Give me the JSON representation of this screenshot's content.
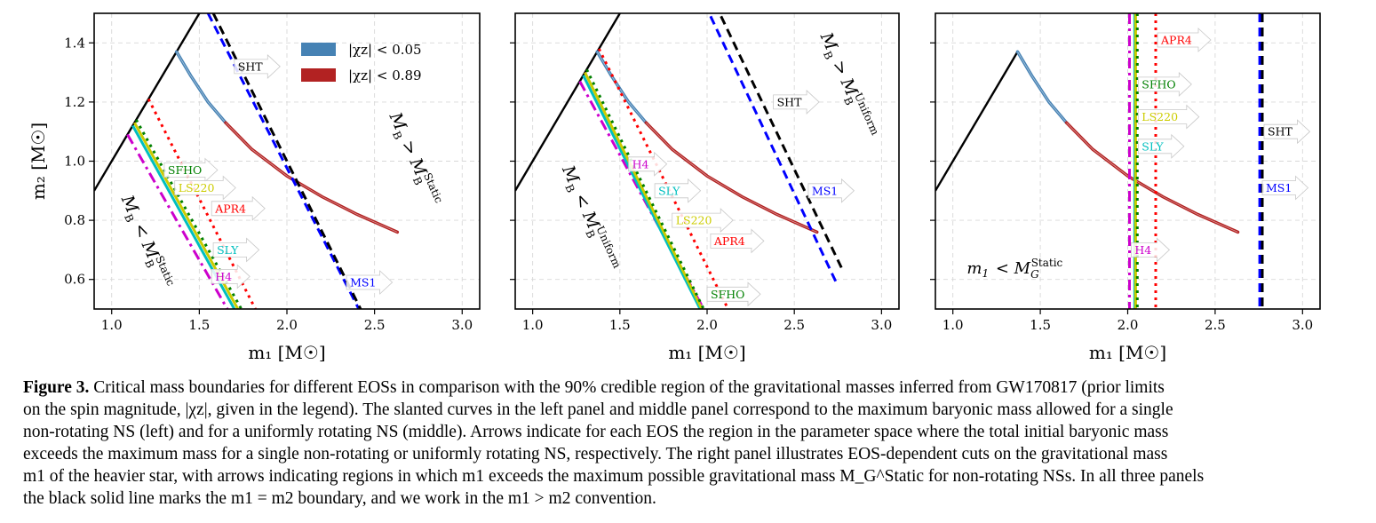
{
  "chart_data": [
    {
      "type": "line",
      "panel": "left",
      "xlabel": "m₁ [M☉]",
      "ylabel": "m₂ [M☉]",
      "xlim": [
        0.9,
        3.1
      ],
      "ylim": [
        0.5,
        1.5
      ],
      "xticks": [
        "1.0",
        "1.5",
        "2.0",
        "2.5",
        "3.0"
      ],
      "yticks": [
        "0.6",
        "0.8",
        "1.0",
        "1.2",
        "1.4"
      ],
      "grid": true,
      "legend": {
        "position": "top-center",
        "entries": [
          "|χz| < 0.05",
          "|χz| < 0.89"
        ]
      },
      "series": [
        {
          "name": "m1=m2 boundary",
          "color": "#000000",
          "style": "solid",
          "points": [
            [
              0.9,
              0.9
            ],
            [
              1.5,
              1.5
            ]
          ]
        },
        {
          "name": "|χz| < 0.05",
          "color": "#4682b4",
          "style": "band",
          "points": [
            [
              1.37,
              1.37
            ],
            [
              1.45,
              1.29
            ],
            [
              1.55,
              1.2
            ],
            [
              1.65,
              1.13
            ]
          ]
        },
        {
          "name": "|χz| < 0.89",
          "color": "#b22222",
          "style": "band",
          "points": [
            [
              1.65,
              1.13
            ],
            [
              1.8,
              1.04
            ],
            [
              2.0,
              0.95
            ],
            [
              2.2,
              0.88
            ],
            [
              2.4,
              0.82
            ],
            [
              2.63,
              0.76
            ]
          ]
        },
        {
          "name": "H4",
          "color": "#cc00cc",
          "style": "dashdot",
          "points": [
            [
              1.09,
              1.09
            ],
            [
              1.66,
              0.5
            ]
          ]
        },
        {
          "name": "SLY",
          "color": "#00bfbf",
          "style": "solid",
          "points": [
            [
              1.12,
              1.12
            ],
            [
              1.7,
              0.5
            ]
          ]
        },
        {
          "name": "LS220",
          "color": "#cccc00",
          "style": "solid",
          "points": [
            [
              1.13,
              1.13
            ],
            [
              1.72,
              0.5
            ]
          ]
        },
        {
          "name": "SFHO",
          "color": "#008000",
          "style": "dotted",
          "points": [
            [
              1.14,
              1.14
            ],
            [
              1.74,
              0.5
            ]
          ]
        },
        {
          "name": "APR4",
          "color": "#ff0000",
          "style": "dotted",
          "points": [
            [
              1.21,
              1.21
            ],
            [
              1.82,
              0.5
            ]
          ]
        },
        {
          "name": "MS1",
          "color": "#0000ff",
          "style": "dashed",
          "points": [
            [
              1.55,
              1.5
            ],
            [
              2.41,
              0.5
            ]
          ]
        },
        {
          "name": "SHT",
          "color": "#000000",
          "style": "dashed",
          "points": [
            [
              1.58,
              1.5
            ],
            [
              2.42,
              0.5
            ]
          ]
        }
      ],
      "annotations": [
        {
          "text": "SHT",
          "x": 1.7,
          "y": 1.32,
          "color": "#000000"
        },
        {
          "text": "SFHO",
          "x": 1.3,
          "y": 0.97,
          "color": "#008000"
        },
        {
          "text": "LS220",
          "x": 1.36,
          "y": 0.91,
          "color": "#cccc00"
        },
        {
          "text": "APR4",
          "x": 1.57,
          "y": 0.84,
          "color": "#ff0000"
        },
        {
          "text": "SLY",
          "x": 1.58,
          "y": 0.7,
          "color": "#00bfbf"
        },
        {
          "text": "H4",
          "x": 1.57,
          "y": 0.61,
          "color": "#cc00cc"
        },
        {
          "text": "MS1",
          "x": 2.34,
          "y": 0.59,
          "color": "#0000ff"
        }
      ],
      "region_labels": [
        {
          "text": "M_B > M_B^Static",
          "x": 2.7,
          "y": 1.0
        },
        {
          "text": "M_B < M_B^Static",
          "x": 1.17,
          "y": 0.72
        }
      ]
    },
    {
      "type": "line",
      "panel": "middle",
      "xlabel": "m₁ [M☉]",
      "xlim": [
        0.9,
        3.1
      ],
      "ylim": [
        0.5,
        1.5
      ],
      "xticks": [
        "1.0",
        "1.5",
        "2.0",
        "2.5",
        "3.0"
      ],
      "grid": true,
      "series": [
        {
          "name": "m1=m2 boundary",
          "color": "#000000",
          "style": "solid",
          "points": [
            [
              0.9,
              0.9
            ],
            [
              1.5,
              1.5
            ]
          ]
        },
        {
          "name": "|χz| < 0.05",
          "color": "#4682b4",
          "style": "band",
          "points": [
            [
              1.37,
              1.37
            ],
            [
              1.45,
              1.29
            ],
            [
              1.55,
              1.2
            ],
            [
              1.65,
              1.13
            ]
          ]
        },
        {
          "name": "|χz| < 0.89",
          "color": "#b22222",
          "style": "band",
          "points": [
            [
              1.65,
              1.13
            ],
            [
              1.8,
              1.04
            ],
            [
              2.0,
              0.95
            ],
            [
              2.2,
              0.88
            ],
            [
              2.4,
              0.82
            ],
            [
              2.63,
              0.76
            ]
          ]
        },
        {
          "name": "H4",
          "color": "#cc00cc",
          "style": "dashdot",
          "points": [
            [
              1.27,
              1.27
            ],
            [
              1.98,
              0.5
            ]
          ]
        },
        {
          "name": "SLY",
          "color": "#00bfbf",
          "style": "solid",
          "points": [
            [
              1.29,
              1.29
            ],
            [
              1.96,
              0.5
            ]
          ]
        },
        {
          "name": "LS220",
          "color": "#cccc00",
          "style": "solid",
          "points": [
            [
              1.3,
              1.3
            ],
            [
              1.97,
              0.5
            ]
          ]
        },
        {
          "name": "SFHO",
          "color": "#008000",
          "style": "dotted",
          "points": [
            [
              1.31,
              1.31
            ],
            [
              1.98,
              0.5
            ]
          ]
        },
        {
          "name": "APR4",
          "color": "#ff0000",
          "style": "dotted",
          "points": [
            [
              1.38,
              1.38
            ],
            [
              2.12,
              0.5
            ]
          ]
        },
        {
          "name": "MS1",
          "color": "#0000ff",
          "style": "dashed",
          "points": [
            [
              2.02,
              1.49
            ],
            [
              2.74,
              0.59
            ]
          ]
        },
        {
          "name": "SHT",
          "color": "#000000",
          "style": "dashed",
          "points": [
            [
              2.08,
              1.49
            ],
            [
              2.77,
              0.64
            ]
          ]
        }
      ],
      "annotations": [
        {
          "text": "SHT",
          "x": 2.38,
          "y": 1.2,
          "color": "#000000"
        },
        {
          "text": "H4",
          "x": 1.55,
          "y": 0.99,
          "color": "#cc00cc"
        },
        {
          "text": "SLY",
          "x": 1.7,
          "y": 0.9,
          "color": "#00bfbf"
        },
        {
          "text": "MS1",
          "x": 2.58,
          "y": 0.9,
          "color": "#0000ff"
        },
        {
          "text": "LS220",
          "x": 1.8,
          "y": 0.8,
          "color": "#cccc00"
        },
        {
          "text": "APR4",
          "x": 2.02,
          "y": 0.73,
          "color": "#ff0000"
        },
        {
          "text": "SFHO",
          "x": 2.0,
          "y": 0.55,
          "color": "#008000"
        }
      ],
      "region_labels": [
        {
          "text": "M_B > M_B^Uniform",
          "x": 2.78,
          "y": 1.25
        },
        {
          "text": "M_B < M_B^Uniform",
          "x": 1.3,
          "y": 0.8
        }
      ]
    },
    {
      "type": "line",
      "panel": "right",
      "xlabel": "m₁ [M☉]",
      "xlim": [
        0.9,
        3.1
      ],
      "ylim": [
        0.5,
        1.5
      ],
      "xticks": [
        "1.0",
        "1.5",
        "2.0",
        "2.5",
        "3.0"
      ],
      "grid": true,
      "series": [
        {
          "name": "m1=m2 boundary",
          "color": "#000000",
          "style": "solid",
          "points": [
            [
              0.9,
              0.9
            ],
            [
              1.37,
              1.37
            ]
          ]
        },
        {
          "name": "|χz| < 0.05",
          "color": "#4682b4",
          "style": "band",
          "points": [
            [
              1.37,
              1.37
            ],
            [
              1.45,
              1.29
            ],
            [
              1.55,
              1.2
            ],
            [
              1.65,
              1.13
            ]
          ]
        },
        {
          "name": "|χz| < 0.89",
          "color": "#b22222",
          "style": "band",
          "points": [
            [
              1.65,
              1.13
            ],
            [
              1.8,
              1.04
            ],
            [
              2.0,
              0.95
            ],
            [
              2.2,
              0.88
            ],
            [
              2.4,
              0.82
            ],
            [
              2.63,
              0.76
            ]
          ]
        },
        {
          "name": "H4",
          "color": "#cc00cc",
          "style": "dashdot",
          "points": [
            [
              2.01,
              1.5
            ],
            [
              2.01,
              0.5
            ]
          ]
        },
        {
          "name": "SLY",
          "color": "#00bfbf",
          "style": "solid",
          "points": [
            [
              2.04,
              1.5
            ],
            [
              2.04,
              0.5
            ]
          ]
        },
        {
          "name": "LS220",
          "color": "#cccc00",
          "style": "solid",
          "points": [
            [
              2.045,
              1.5
            ],
            [
              2.045,
              0.5
            ]
          ]
        },
        {
          "name": "SFHO",
          "color": "#008000",
          "style": "dotted",
          "points": [
            [
              2.055,
              1.5
            ],
            [
              2.055,
              0.5
            ]
          ]
        },
        {
          "name": "APR4",
          "color": "#ff0000",
          "style": "dotted",
          "points": [
            [
              2.16,
              1.5
            ],
            [
              2.16,
              0.5
            ]
          ]
        },
        {
          "name": "MS1",
          "color": "#0000ff",
          "style": "dashed",
          "points": [
            [
              2.755,
              1.5
            ],
            [
              2.755,
              0.5
            ]
          ]
        },
        {
          "name": "SHT",
          "color": "#000000",
          "style": "dashed",
          "points": [
            [
              2.77,
              1.5
            ],
            [
              2.77,
              0.5
            ]
          ]
        }
      ],
      "annotations": [
        {
          "text": "APR4",
          "x": 2.17,
          "y": 1.41,
          "color": "#ff0000"
        },
        {
          "text": "SFHO",
          "x": 2.06,
          "y": 1.26,
          "color": "#008000"
        },
        {
          "text": "LS220",
          "x": 2.06,
          "y": 1.15,
          "color": "#cccc00"
        },
        {
          "text": "SLY",
          "x": 2.06,
          "y": 1.05,
          "color": "#00bfbf"
        },
        {
          "text": "SHT",
          "x": 2.78,
          "y": 1.1,
          "color": "#000000"
        },
        {
          "text": "MS1",
          "x": 2.77,
          "y": 0.91,
          "color": "#0000ff"
        },
        {
          "text": "H4",
          "x": 2.02,
          "y": 0.7,
          "color": "#cc00cc"
        }
      ],
      "region_labels": [
        {
          "text": "m_1 < M_G^Static",
          "x": 1.08,
          "y": 0.62
        }
      ]
    }
  ],
  "caption": {
    "label": "Figure 3.",
    "lines": [
      "Critical mass boundaries for different EOSs in comparison with the 90% credible region of the gravitational masses inferred from GW170817 (prior limits",
      "on the spin magnitude, |χz|, given in the legend). The slanted curves in the left panel and middle panel correspond to the maximum baryonic mass allowed for a single",
      "non-rotating NS (left) and for a uniformly rotating NS (middle). Arrows indicate for each EOS the region in the parameter space where the total initial baryonic mass",
      "exceeds the maximum mass for a single non-rotating or uniformly rotating NS, respectively. The right panel illustrates EOS-dependent cuts on the gravitational mass",
      "m1 of the heavier star, with arrows indicating regions in which m1 exceeds the maximum possible gravitational mass M_G^Static for non-rotating NSs. In all three panels",
      "the black solid line marks the m1 = m2 boundary, and we work in the m1 > m2 convention."
    ]
  }
}
